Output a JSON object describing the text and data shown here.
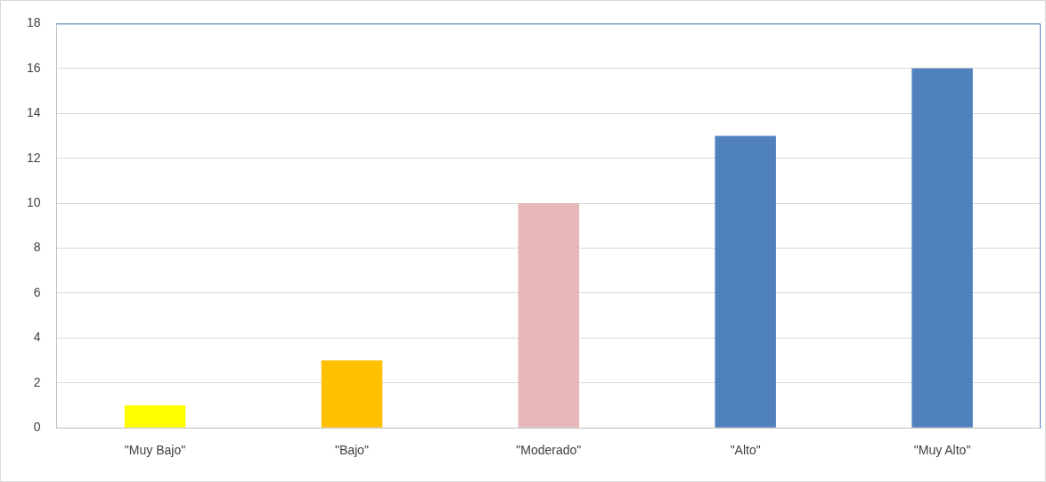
{
  "chart_data": {
    "type": "bar",
    "categories": [
      "\"Muy Bajo\"",
      "\"Bajo\"",
      "\"Moderado\"",
      "\"Alto\"",
      "\"Muy Alto\""
    ],
    "values": [
      1,
      3,
      10,
      13,
      16
    ],
    "colors": [
      "#ffff00",
      "#ffc000",
      "#e6b8b7",
      "#4f81bd",
      "#4f81bd"
    ],
    "ylim": [
      0,
      18
    ],
    "yticks": [
      0,
      2,
      4,
      6,
      8,
      10,
      12,
      14,
      16,
      18
    ],
    "grid": "y",
    "legend": false
  }
}
